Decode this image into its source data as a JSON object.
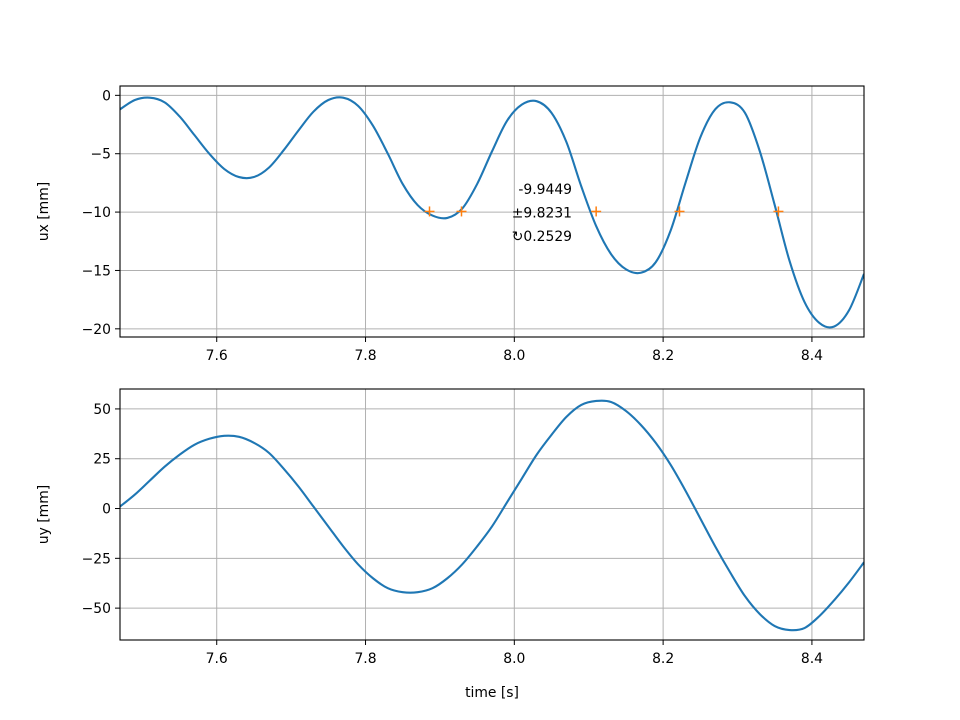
{
  "chart_data": [
    {
      "type": "line",
      "title": "",
      "xlabel": "",
      "ylabel": "ux [mm]",
      "xlim": [
        7.47,
        8.47
      ],
      "ylim": [
        -20.7,
        0.8
      ],
      "xticks": [
        7.6,
        7.8,
        8.0,
        8.2,
        8.4
      ],
      "xtick_labels": [
        "7.6",
        "7.8",
        "8.0",
        "8.2",
        "8.4"
      ],
      "yticks": [
        0,
        -5,
        -10,
        -15,
        -20
      ],
      "ytick_labels": [
        "0",
        "−5",
        "−10",
        "−15",
        "−20"
      ],
      "grid": true,
      "series": [
        {
          "color": "#1f77b4",
          "x": [
            7.47,
            7.49,
            7.51,
            7.53,
            7.55,
            7.57,
            7.59,
            7.61,
            7.63,
            7.65,
            7.67,
            7.69,
            7.71,
            7.73,
            7.75,
            7.77,
            7.79,
            7.81,
            7.83,
            7.85,
            7.87,
            7.89,
            7.91,
            7.93,
            7.95,
            7.97,
            7.99,
            8.01,
            8.03,
            8.05,
            8.07,
            8.09,
            8.11,
            8.13,
            8.15,
            8.17,
            8.19,
            8.21,
            8.23,
            8.25,
            8.27,
            8.29,
            8.31,
            8.33,
            8.35,
            8.37,
            8.39,
            8.41,
            8.43,
            8.45,
            8.47
          ],
          "y": [
            -1.2,
            -0.4,
            -0.2,
            -0.6,
            -1.8,
            -3.4,
            -5.0,
            -6.3,
            -7.0,
            -7.0,
            -6.2,
            -4.7,
            -3.0,
            -1.4,
            -0.4,
            -0.2,
            -0.9,
            -2.6,
            -5.0,
            -7.6,
            -9.4,
            -10.3,
            -10.5,
            -9.7,
            -7.6,
            -4.8,
            -2.2,
            -0.8,
            -0.5,
            -1.5,
            -4.0,
            -7.8,
            -11.2,
            -13.6,
            -14.9,
            -15.2,
            -14.3,
            -11.6,
            -7.5,
            -3.6,
            -1.2,
            -0.6,
            -1.5,
            -4.8,
            -9.4,
            -14.2,
            -17.7,
            -19.5,
            -19.8,
            -18.4,
            -15.3
          ]
        },
        {
          "color": "#ff7f0e",
          "marker": "+",
          "x": [
            7.886,
            7.929,
            8.11,
            8.222,
            8.355
          ],
          "y": [
            -9.9449,
            -9.9449,
            -9.9449,
            -9.9449,
            -9.9449
          ]
        }
      ],
      "annotations": [
        "-9.9449",
        "±9.8231",
        "↻0.2529"
      ]
    },
    {
      "type": "line",
      "title": "",
      "xlabel": "time [s]",
      "ylabel": "uy [mm]",
      "xlim": [
        7.47,
        8.47
      ],
      "ylim": [
        -66,
        60
      ],
      "xticks": [
        7.6,
        7.8,
        8.0,
        8.2,
        8.4
      ],
      "xtick_labels": [
        "7.6",
        "7.8",
        "8.0",
        "8.2",
        "8.4"
      ],
      "yticks": [
        50,
        25,
        0,
        -25,
        -50
      ],
      "ytick_labels": [
        "50",
        "25",
        "0",
        "−25",
        "−50"
      ],
      "grid": true,
      "series": [
        {
          "color": "#1f77b4",
          "x": [
            7.47,
            7.49,
            7.51,
            7.53,
            7.55,
            7.57,
            7.59,
            7.61,
            7.63,
            7.65,
            7.67,
            7.69,
            7.71,
            7.73,
            7.75,
            7.77,
            7.79,
            7.81,
            7.83,
            7.85,
            7.87,
            7.89,
            7.91,
            7.93,
            7.95,
            7.97,
            7.99,
            8.01,
            8.03,
            8.05,
            8.07,
            8.09,
            8.11,
            8.13,
            8.15,
            8.17,
            8.19,
            8.21,
            8.23,
            8.25,
            8.27,
            8.29,
            8.31,
            8.33,
            8.35,
            8.37,
            8.39,
            8.41,
            8.43,
            8.45,
            8.47
          ],
          "y": [
            1,
            7,
            14,
            21,
            27,
            32,
            35,
            36.5,
            36,
            33,
            28,
            20,
            11,
            1,
            -9,
            -19,
            -28,
            -35,
            -40,
            -42,
            -42,
            -40,
            -35,
            -28,
            -19,
            -9,
            3,
            15,
            27,
            37,
            46,
            52,
            54,
            53.5,
            49,
            42,
            33,
            22,
            9,
            -5,
            -19,
            -32,
            -44,
            -53,
            -59,
            -61,
            -60,
            -54,
            -46,
            -37,
            -27
          ]
        }
      ]
    }
  ]
}
